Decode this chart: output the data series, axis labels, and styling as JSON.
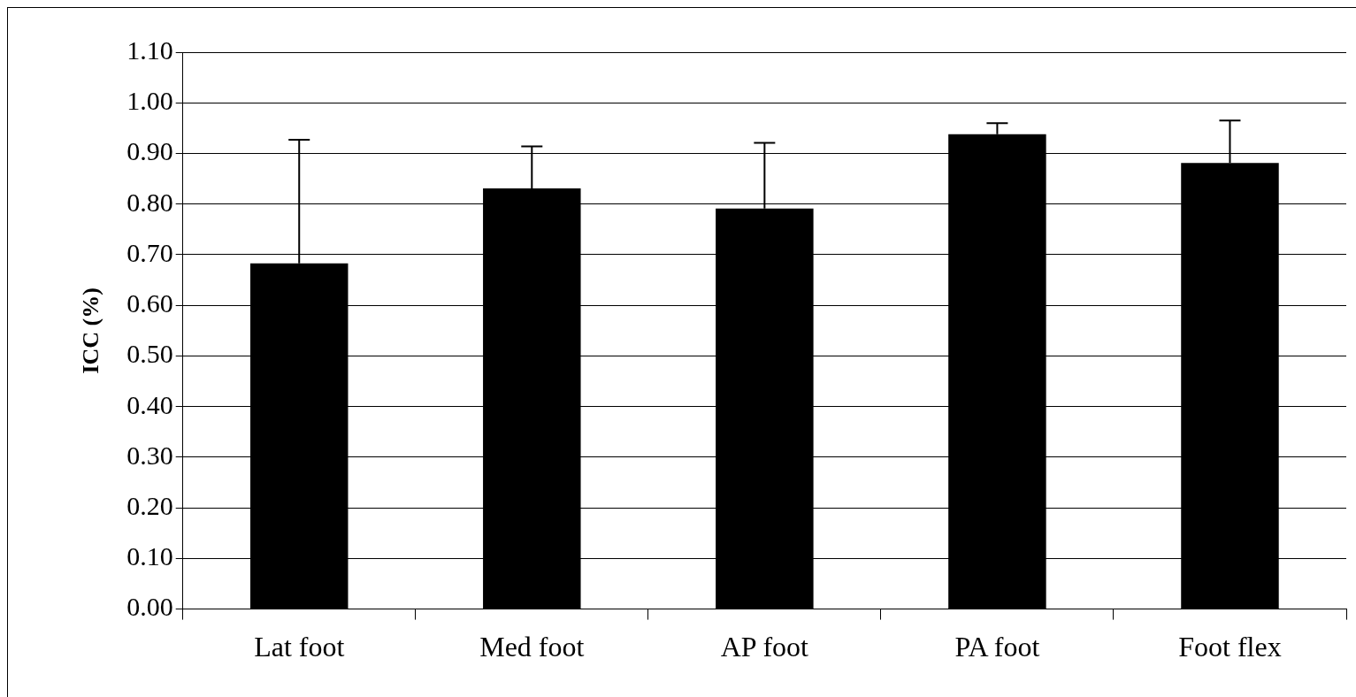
{
  "chart_data": {
    "type": "bar",
    "ylabel": "ICC (%)",
    "categories": [
      "Lat foot",
      "Med foot",
      "AP foot",
      "PA foot",
      "Foot flex"
    ],
    "values": [
      0.683,
      0.831,
      0.791,
      0.938,
      0.881
    ],
    "errors": [
      [
        0.683,
        0.927
      ],
      [
        0.831,
        0.914
      ],
      [
        0.791,
        0.921
      ],
      [
        0.938,
        0.96
      ],
      [
        0.881,
        0.965
      ]
    ],
    "color": "#000000",
    "ylim": [
      0,
      1.1
    ],
    "yticks": [
      {
        "value": 0,
        "label": "0.00"
      },
      {
        "value": 0.1,
        "label": "0.10"
      },
      {
        "value": 0.2,
        "label": "0.20"
      },
      {
        "value": 0.3,
        "label": "0.30"
      },
      {
        "value": 0.4,
        "label": "0.40"
      },
      {
        "value": 0.5,
        "label": "0.50"
      },
      {
        "value": 0.6,
        "label": "0.60"
      },
      {
        "value": 0.7,
        "label": "0.70"
      },
      {
        "value": 0.8,
        "label": "0.80"
      },
      {
        "value": 0.9,
        "label": "0.90"
      },
      {
        "value": 1,
        "label": "1.00"
      },
      {
        "value": 1.1,
        "label": "1.10"
      }
    ],
    "grid": "y",
    "legend": false
  }
}
